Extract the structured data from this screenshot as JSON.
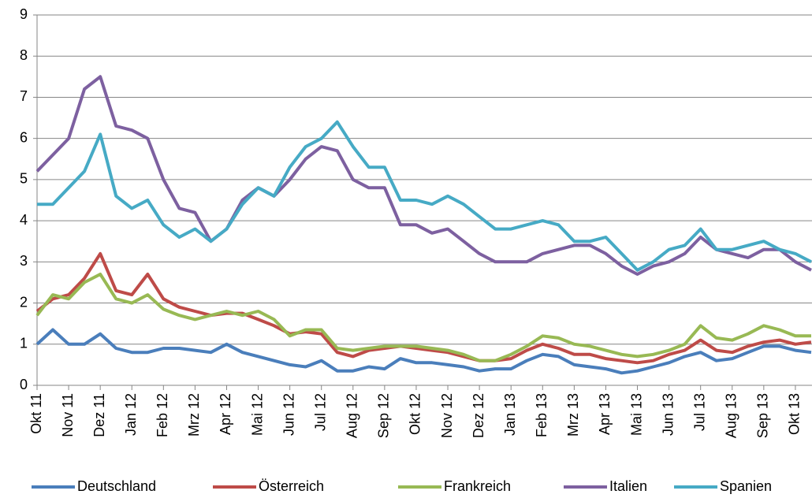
{
  "chart_data": {
    "type": "line",
    "categories": [
      "Okt 11",
      null,
      "Nov 11",
      null,
      "Dez 11",
      null,
      "Jan 12",
      null,
      "Feb 12",
      null,
      "Mrz 12",
      null,
      "Apr 12",
      null,
      "Mai 12",
      null,
      "Jun 12",
      null,
      "Jul 12",
      null,
      "Aug 12",
      null,
      "Sep 12",
      null,
      "Okt 12",
      null,
      "Nov 12",
      null,
      "Dez 12",
      null,
      "Jan 13",
      null,
      "Feb 13",
      null,
      "Mrz 13",
      null,
      "Apr 13",
      null,
      "Mai 13",
      null,
      "Jun 13",
      null,
      "Jul 13",
      null,
      "Aug 13",
      null,
      "Sep 13",
      null,
      "Okt 13",
      null
    ],
    "series": [
      {
        "name": "Deutschland",
        "color": "#4a7ebb",
        "values": [
          1.0,
          1.35,
          1.0,
          1.0,
          1.25,
          0.9,
          0.8,
          0.8,
          0.9,
          0.9,
          0.85,
          0.8,
          1.0,
          0.8,
          0.7,
          0.6,
          0.5,
          0.45,
          0.6,
          0.35,
          0.35,
          0.45,
          0.4,
          0.65,
          0.55,
          0.55,
          0.5,
          0.45,
          0.35,
          0.4,
          0.4,
          0.6,
          0.75,
          0.7,
          0.5,
          0.45,
          0.4,
          0.3,
          0.35,
          0.45,
          0.55,
          0.7,
          0.8,
          0.6,
          0.65,
          0.8,
          0.95,
          0.95,
          0.85,
          0.8
        ]
      },
      {
        "name": "Österreich",
        "color": "#be4b48",
        "values": [
          1.8,
          2.1,
          2.2,
          2.6,
          3.2,
          2.3,
          2.2,
          2.7,
          2.1,
          1.9,
          1.8,
          1.7,
          1.75,
          1.75,
          1.6,
          1.45,
          1.25,
          1.3,
          1.25,
          0.8,
          0.7,
          0.85,
          0.9,
          0.95,
          0.9,
          0.85,
          0.8,
          0.7,
          0.6,
          0.6,
          0.65,
          0.85,
          1.0,
          0.9,
          0.75,
          0.75,
          0.65,
          0.6,
          0.55,
          0.6,
          0.75,
          0.85,
          1.1,
          0.85,
          0.8,
          0.95,
          1.05,
          1.1,
          1.0,
          1.05
        ]
      },
      {
        "name": "Frankreich",
        "color": "#98b954",
        "values": [
          1.7,
          2.2,
          2.1,
          2.5,
          2.7,
          2.1,
          2.0,
          2.2,
          1.85,
          1.7,
          1.6,
          1.7,
          1.8,
          1.7,
          1.8,
          1.6,
          1.2,
          1.35,
          1.35,
          0.9,
          0.85,
          0.9,
          0.95,
          0.95,
          0.95,
          0.9,
          0.85,
          0.75,
          0.6,
          0.6,
          0.75,
          0.95,
          1.2,
          1.15,
          1.0,
          0.95,
          0.85,
          0.75,
          0.7,
          0.75,
          0.85,
          1.0,
          1.45,
          1.15,
          1.1,
          1.25,
          1.45,
          1.35,
          1.2,
          1.2
        ]
      },
      {
        "name": "Italien",
        "color": "#7d60a0",
        "values": [
          5.2,
          5.6,
          6.0,
          7.2,
          7.5,
          6.3,
          6.2,
          6.0,
          5.0,
          4.3,
          4.2,
          3.5,
          3.8,
          4.5,
          4.8,
          4.6,
          5.0,
          5.5,
          5.8,
          5.7,
          5.0,
          4.8,
          4.8,
          3.9,
          3.9,
          3.7,
          3.8,
          3.5,
          3.2,
          3.0,
          3.0,
          3.0,
          3.2,
          3.3,
          3.4,
          3.4,
          3.2,
          2.9,
          2.7,
          2.9,
          3.0,
          3.2,
          3.6,
          3.3,
          3.2,
          3.1,
          3.3,
          3.3,
          3.0,
          2.8
        ]
      },
      {
        "name": "Spanien",
        "color": "#46aac5",
        "values": [
          4.4,
          4.4,
          4.8,
          5.2,
          6.1,
          4.6,
          4.3,
          4.5,
          3.9,
          3.6,
          3.8,
          3.5,
          3.8,
          4.4,
          4.8,
          4.6,
          5.3,
          5.8,
          6.0,
          6.4,
          5.8,
          5.3,
          5.3,
          4.5,
          4.5,
          4.4,
          4.6,
          4.4,
          4.1,
          3.8,
          3.8,
          3.9,
          4.0,
          3.9,
          3.5,
          3.5,
          3.6,
          3.2,
          2.8,
          3.0,
          3.3,
          3.4,
          3.8,
          3.3,
          3.3,
          3.4,
          3.5,
          3.3,
          3.2,
          3.0
        ]
      }
    ],
    "ylim": [
      0,
      9
    ],
    "yticks": [
      0,
      1,
      2,
      3,
      4,
      5,
      6,
      7,
      8,
      9
    ],
    "grid": true,
    "legend": "bottom"
  }
}
